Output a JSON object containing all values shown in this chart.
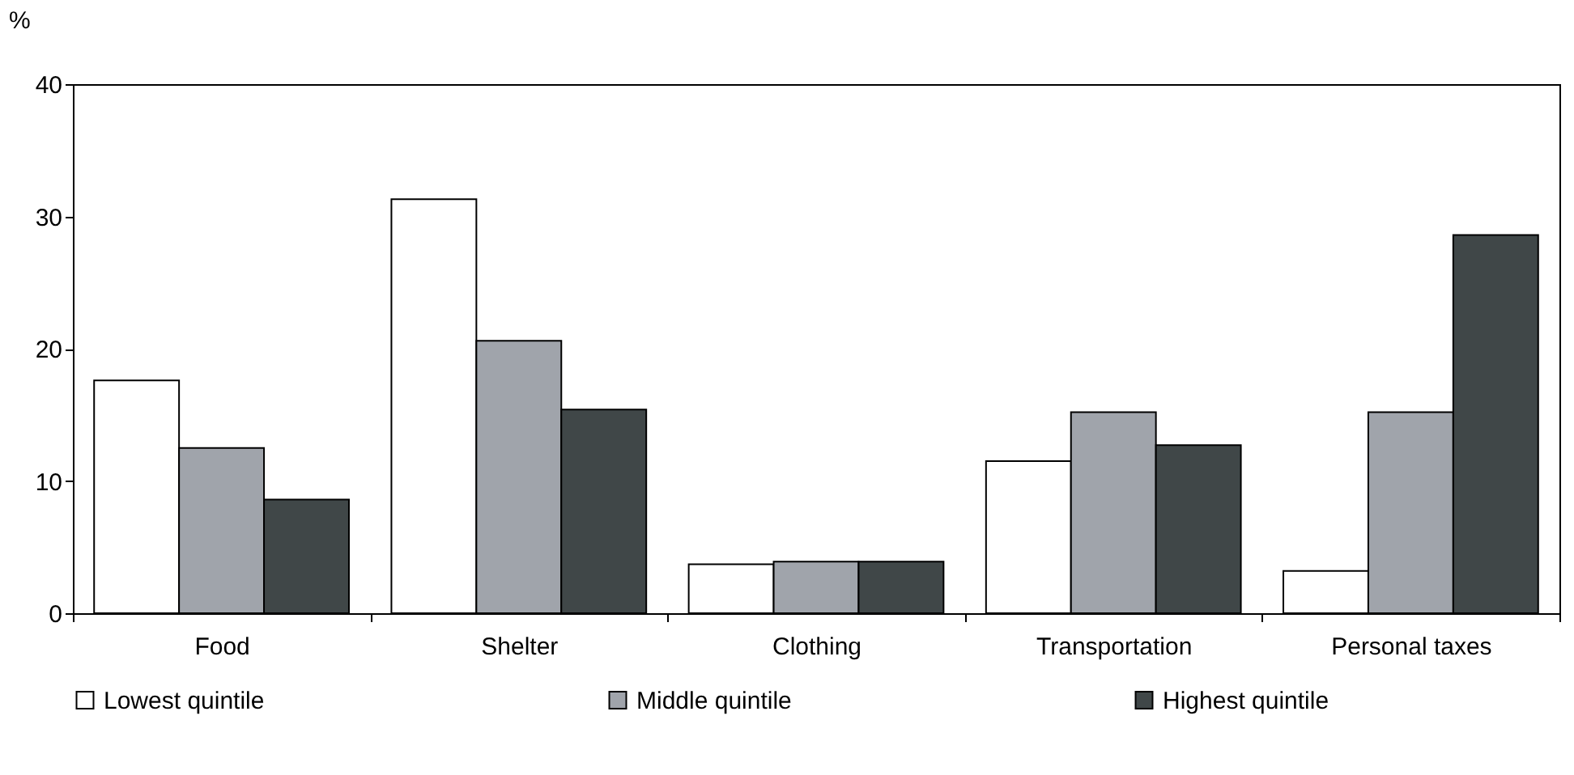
{
  "chart_data": {
    "type": "bar",
    "ylabel": "%",
    "categories": [
      "Food",
      "Shelter",
      "Clothing",
      "Transportation",
      "Personal taxes"
    ],
    "series": [
      {
        "name": "Lowest quintile",
        "color": "#ffffff",
        "values": [
          17.6,
          31.3,
          3.7,
          11.5,
          3.2
        ]
      },
      {
        "name": "Middle quintile",
        "color": "#a0a4ab",
        "values": [
          12.5,
          20.6,
          3.9,
          15.2,
          15.2
        ]
      },
      {
        "name": "Highest quintile",
        "color": "#404748",
        "values": [
          8.6,
          15.4,
          3.9,
          12.7,
          28.6
        ]
      }
    ],
    "ylim": [
      0,
      40
    ],
    "yticks": [
      0,
      10,
      20,
      30,
      40
    ],
    "grid": false,
    "legend": "bottom"
  }
}
